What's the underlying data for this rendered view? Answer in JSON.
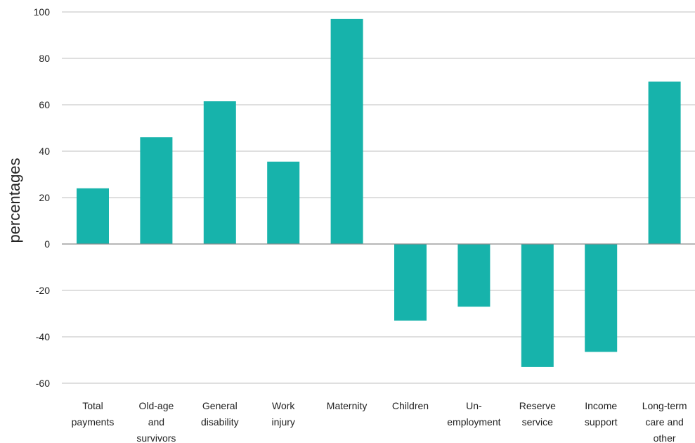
{
  "chart_data": {
    "type": "bar",
    "title": "",
    "xlabel": "",
    "ylabel": "percentages",
    "ylim": [
      -60,
      100
    ],
    "yticks": [
      100,
      80,
      60,
      40,
      20,
      0,
      -20,
      -40,
      -60
    ],
    "grid": true,
    "legend": "none",
    "bar_color": "#17b3ab",
    "categories": [
      [
        "Total",
        "payments"
      ],
      [
        "Old-age",
        "and",
        "survivors"
      ],
      [
        "General",
        "disability"
      ],
      [
        "Work",
        "injury"
      ],
      [
        "Maternity"
      ],
      [
        "Children"
      ],
      [
        "Un-",
        "employment"
      ],
      [
        "Reserve",
        "service"
      ],
      [
        "Income",
        "support"
      ],
      [
        "Long-term",
        "care and",
        "other"
      ]
    ],
    "values": [
      24,
      46,
      61.5,
      35.5,
      97,
      -33,
      -27,
      -53,
      -46.5,
      70
    ]
  }
}
